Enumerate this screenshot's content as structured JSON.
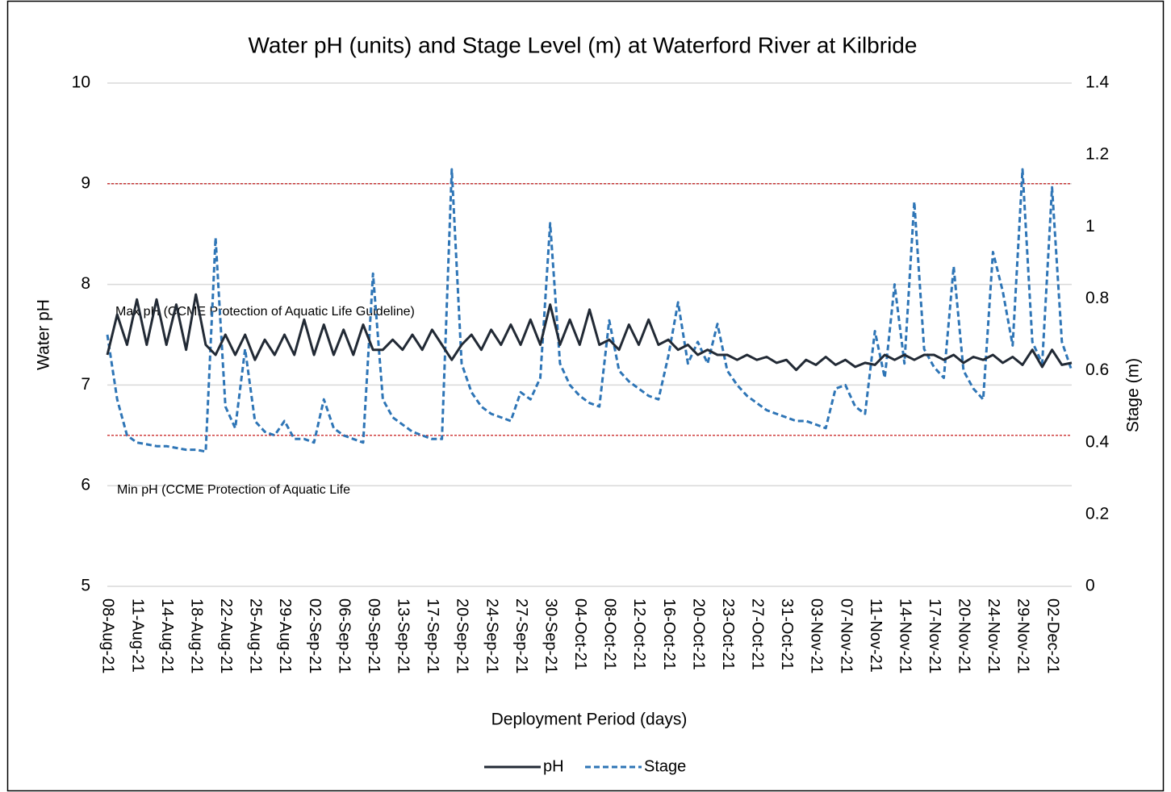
{
  "chart_data": {
    "type": "line",
    "title": "Water pH (units) and Stage Level (m) at Waterford River at Kilbride",
    "x_label": "Deployment Period (days)",
    "y_label": "Water pH",
    "y2_label": "Stage (m)",
    "categories": [
      "08-Aug-21",
      null,
      null,
      "11-Aug-21",
      null,
      null,
      "14-Aug-21",
      null,
      null,
      "18-Aug-21",
      null,
      null,
      "22-Aug-21",
      null,
      null,
      "25-Aug-21",
      null,
      null,
      "29-Aug-21",
      null,
      null,
      "02-Sep-21",
      null,
      null,
      "06-Sep-21",
      null,
      null,
      "09-Sep-21",
      null,
      null,
      "13-Sep-21",
      null,
      null,
      "17-Sep-21",
      null,
      null,
      "20-Sep-21",
      null,
      null,
      "24-Sep-21",
      null,
      null,
      "27-Sep-21",
      null,
      null,
      "30-Sep-21",
      null,
      null,
      "04-Oct-21",
      null,
      null,
      "08-Oct-21",
      null,
      null,
      "12-Oct-21",
      null,
      null,
      "16-Oct-21",
      null,
      null,
      "20-Oct-21",
      null,
      null,
      "23-Oct-21",
      null,
      null,
      "27-Oct-21",
      null,
      null,
      "31-Oct-21",
      null,
      null,
      "03-Nov-21",
      null,
      null,
      "07-Nov-21",
      null,
      null,
      "11-Nov-21",
      null,
      null,
      "14-Nov-21",
      null,
      null,
      "17-Nov-21",
      null,
      null,
      "20-Nov-21",
      null,
      null,
      "24-Nov-21",
      null,
      null,
      "29-Nov-21",
      null,
      null,
      "02-Dec-21",
      null,
      null
    ],
    "series": [
      {
        "name": "pH",
        "color": "#222a35",
        "dash": false,
        "axis": "y",
        "values": [
          7.3,
          7.7,
          7.4,
          7.85,
          7.4,
          7.85,
          7.4,
          7.8,
          7.35,
          7.9,
          7.4,
          7.3,
          7.5,
          7.3,
          7.5,
          7.25,
          7.45,
          7.3,
          7.5,
          7.3,
          7.65,
          7.3,
          7.6,
          7.3,
          7.55,
          7.3,
          7.6,
          7.35,
          7.35,
          7.45,
          7.35,
          7.5,
          7.35,
          7.55,
          7.4,
          7.25,
          7.4,
          7.5,
          7.35,
          7.55,
          7.4,
          7.6,
          7.4,
          7.65,
          7.4,
          7.8,
          7.4,
          7.65,
          7.4,
          7.75,
          7.4,
          7.45,
          7.35,
          7.6,
          7.4,
          7.65,
          7.4,
          7.45,
          7.35,
          7.4,
          7.3,
          7.35,
          7.3,
          7.3,
          7.25,
          7.3,
          7.25,
          7.28,
          7.22,
          7.25,
          7.15,
          7.25,
          7.2,
          7.28,
          7.2,
          7.25,
          7.18,
          7.22,
          7.2,
          7.3,
          7.25,
          7.3,
          7.25,
          7.3,
          7.3,
          7.25,
          7.3,
          7.22,
          7.28,
          7.25,
          7.3,
          7.22,
          7.28,
          7.2,
          7.35,
          7.18,
          7.35,
          7.2,
          7.22
        ]
      },
      {
        "name": "Stage",
        "color": "#2e75b6",
        "dash": true,
        "axis": "y2",
        "values": [
          0.7,
          0.52,
          0.42,
          0.4,
          0.395,
          0.39,
          0.39,
          0.385,
          0.38,
          0.38,
          0.375,
          0.97,
          0.5,
          0.44,
          0.66,
          0.46,
          0.43,
          0.42,
          0.46,
          0.41,
          0.41,
          0.4,
          0.52,
          0.44,
          0.42,
          0.41,
          0.4,
          0.87,
          0.52,
          0.47,
          0.45,
          0.43,
          0.42,
          0.41,
          0.41,
          1.16,
          0.62,
          0.54,
          0.5,
          0.48,
          0.47,
          0.46,
          0.54,
          0.52,
          0.58,
          1.01,
          0.62,
          0.56,
          0.53,
          0.51,
          0.5,
          0.74,
          0.6,
          0.57,
          0.55,
          0.53,
          0.52,
          0.64,
          0.79,
          0.62,
          0.68,
          0.62,
          0.73,
          0.6,
          0.56,
          0.53,
          0.51,
          0.49,
          0.48,
          0.47,
          0.46,
          0.46,
          0.45,
          0.44,
          0.55,
          0.56,
          0.5,
          0.48,
          0.71,
          0.58,
          0.84,
          0.62,
          1.07,
          0.66,
          0.61,
          0.58,
          0.89,
          0.6,
          0.55,
          0.52,
          0.93,
          0.82,
          0.67,
          1.16,
          0.68,
          0.62,
          1.11,
          0.68,
          0.6
        ]
      }
    ],
    "reference_lines": [
      9,
      6.5
    ],
    "reference_color": "#c00000",
    "annotations": [
      "Max pH (CCME Protection of Aquatic Life Guideline)",
      "Min pH (CCME Protection of Aquatic Life"
    ],
    "ylim": [
      5,
      10
    ],
    "yticks": [
      5,
      6,
      7,
      8,
      9,
      10
    ],
    "y2lim": [
      0,
      1.4
    ],
    "y2ticks": [
      0,
      0.2,
      0.4,
      0.6,
      0.8,
      1,
      1.2,
      1.4
    ],
    "grid": true,
    "legend": "bottom"
  }
}
